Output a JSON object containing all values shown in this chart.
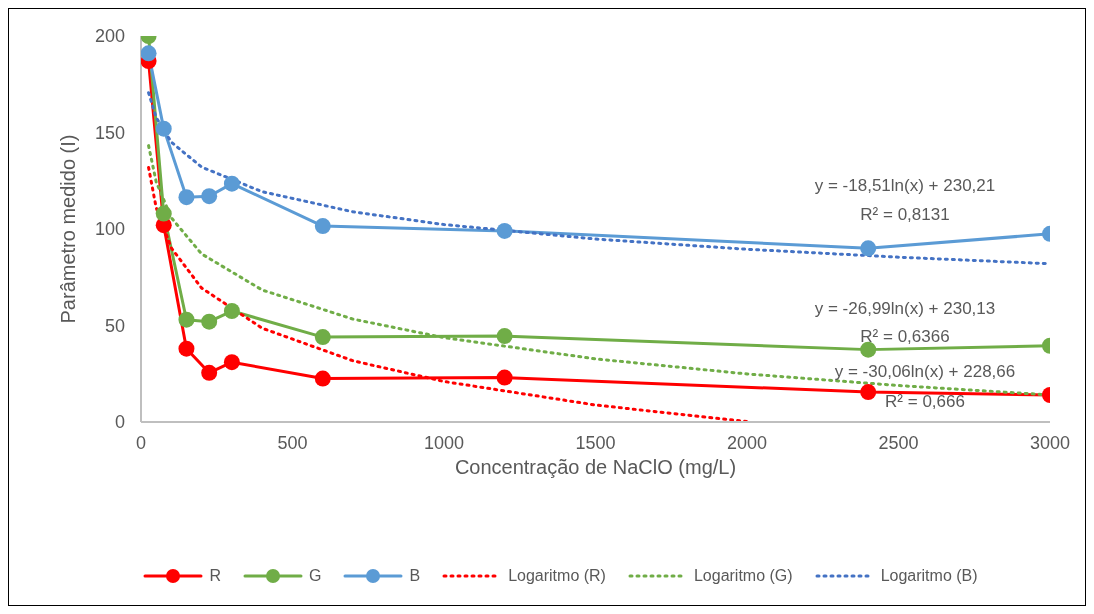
{
  "chart_data": {
    "type": "line",
    "xlabel": "Concentração de NaClO (mg/L)",
    "ylabel": "Parâmetro medido (I)",
    "xlim": [
      0,
      3000
    ],
    "xticks": [
      0,
      500,
      1000,
      1500,
      2000,
      2500,
      3000
    ],
    "ylim": [
      0,
      200
    ],
    "yticks": [
      0,
      50,
      100,
      150,
      200
    ],
    "grid": false,
    "legend": "bottom",
    "marker": "circle",
    "line_style": "solid",
    "series": [
      {
        "name": "R",
        "color": "#ff0000",
        "x": [
          25,
          75,
          150,
          225,
          300,
          600,
          1200,
          2400,
          3000
        ],
        "values": [
          187,
          102,
          38,
          25.5,
          31,
          22.5,
          23,
          15.5,
          14
        ]
      },
      {
        "name": "G",
        "color": "#70ad47",
        "x": [
          25,
          75,
          150,
          225,
          300,
          600,
          1200,
          2400,
          3000
        ],
        "values": [
          200,
          108,
          53,
          52,
          57.5,
          44,
          44.5,
          37.5,
          39.5
        ]
      },
      {
        "name": "B",
        "color": "#5b9bd5",
        "x": [
          25,
          75,
          150,
          225,
          300,
          600,
          1200,
          2400,
          3000
        ],
        "values": [
          191,
          152,
          116.5,
          117,
          123.5,
          101.5,
          99,
          90,
          97.5
        ]
      },
      {
        "name": "Logaritmo (R)",
        "color": "#ff0000",
        "marker": "none",
        "line_style": "dotted",
        "x": [
          25,
          50,
          100,
          200,
          400,
          700,
          1000,
          1500,
          2000
        ],
        "values": [
          131.9,
          111.1,
          90.2,
          69.4,
          48.6,
          31.7,
          21,
          8.8,
          0.2
        ]
      },
      {
        "name": "Logaritmo (G)",
        "color": "#70ad47",
        "marker": "none",
        "line_style": "dotted",
        "x": [
          25,
          50,
          100,
          200,
          400,
          700,
          1000,
          1500,
          2000,
          2500,
          3000
        ],
        "values": [
          143.2,
          124.5,
          105.8,
          87.1,
          68.4,
          53.3,
          43.7,
          32.7,
          24.9,
          18.9,
          14
        ]
      },
      {
        "name": "Logaritmo (B)",
        "color": "#4472c4",
        "marker": "none",
        "line_style": "dotted",
        "x": [
          25,
          50,
          100,
          200,
          400,
          700,
          1000,
          1500,
          2000,
          2500,
          3000
        ],
        "values": [
          170.6,
          157.8,
          145,
          132.1,
          119.3,
          108.9,
          102.3,
          94.8,
          89.5,
          85.4,
          82
        ]
      }
    ],
    "annotations": [
      "y = -18,51ln(x) + 230,21",
      "R² = 0,8131",
      "y = -26,99ln(x) + 230,13",
      "R² = 0,6366",
      "y = -30,06ln(x) + 228,66",
      "R² = 0,666"
    ]
  }
}
